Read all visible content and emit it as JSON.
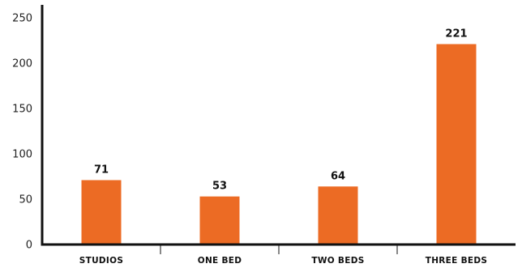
{
  "chart_data": {
    "type": "bar",
    "title": "",
    "xlabel": "",
    "ylabel": "",
    "categories": [
      "STUDIOS",
      "ONE BED",
      "TWO BEDS",
      "THREE BEDS"
    ],
    "values": [
      71,
      53,
      64,
      221
    ],
    "value_labels": [
      "71",
      "53",
      "64",
      "221"
    ],
    "ylim": [
      0,
      250
    ],
    "yticks": [
      0,
      50,
      100,
      150,
      200,
      250
    ],
    "ytick_labels": [
      "0",
      "50",
      "100",
      "150",
      "200",
      "250"
    ],
    "grid": false,
    "legend": "none",
    "bar_color": "#ec6b24",
    "axis_color": "#111111"
  }
}
